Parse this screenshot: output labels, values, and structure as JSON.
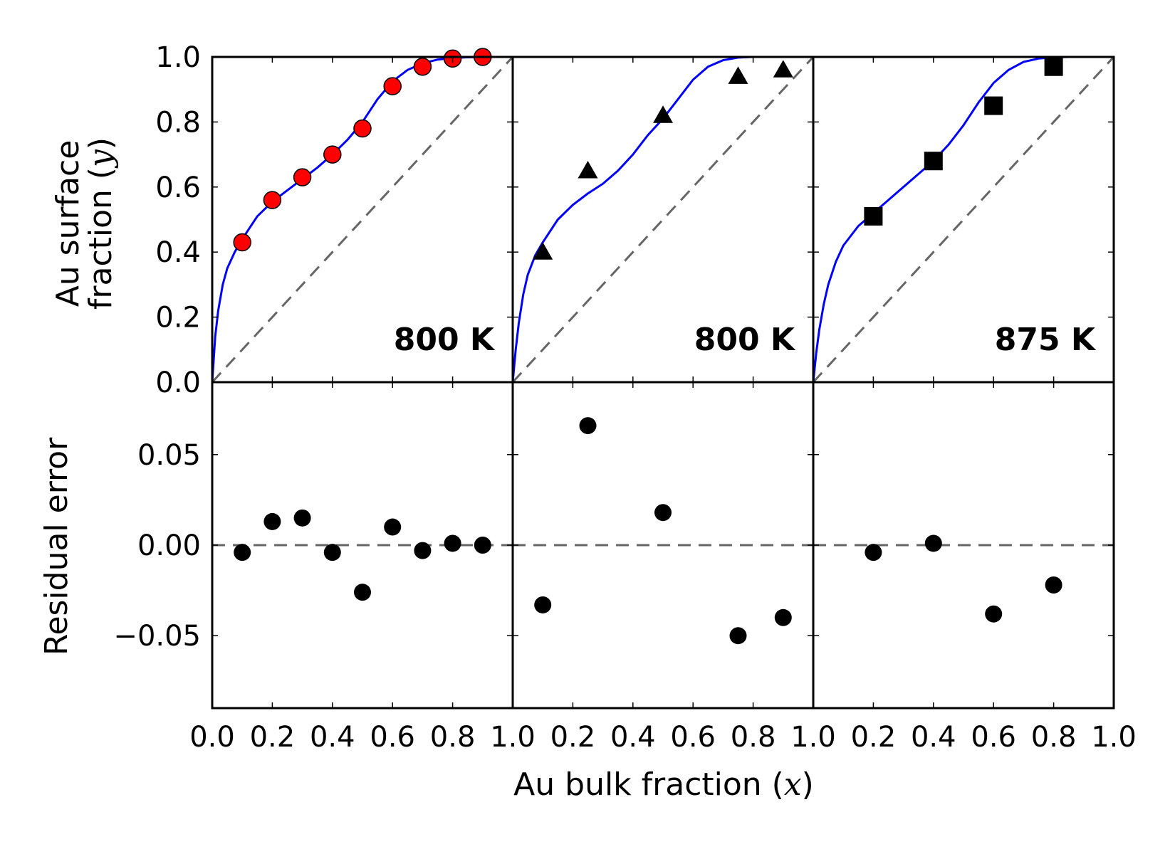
{
  "chart_data": {
    "type": "scatter",
    "xlabel": {
      "text": "Au bulk fraction (",
      "var": "x",
      "close": ")"
    },
    "ylabel_top": {
      "line1": "Au surface",
      "line2": "fraction (",
      "var": "y",
      "close": ")"
    },
    "ylabel_bottom": "Residual error",
    "xlim": [
      0.0,
      1.0
    ],
    "ylim_top": [
      0.0,
      1.0
    ],
    "ylim_bottom": [
      -0.09,
      0.09
    ],
    "x_tick_labels": [
      "0.0",
      "0.2",
      "0.4",
      "0.6",
      "0.8",
      "1.0"
    ],
    "y_tick_labels_top": [
      "0.0",
      "0.2",
      "0.4",
      "0.6",
      "0.8",
      "1.0"
    ],
    "y_tick_labels_bottom": [
      "−0.05",
      "0.00",
      "0.05"
    ],
    "y_ticks_bottom": [
      -0.05,
      0.0,
      0.05
    ],
    "colors": {
      "fit": "#0000ff",
      "reference": "#666666",
      "marker_red": "#ff0000",
      "marker_black": "#000000"
    },
    "panels": [
      {
        "label": "800 K",
        "marker": "circle",
        "marker_color": "#ff0000",
        "x": [
          0.1,
          0.2,
          0.3,
          0.4,
          0.5,
          0.6,
          0.7,
          0.8,
          0.9
        ],
        "y": [
          0.43,
          0.56,
          0.63,
          0.7,
          0.78,
          0.91,
          0.97,
          0.995,
          1.0
        ],
        "residual": [
          -0.004,
          0.013,
          0.015,
          -0.004,
          -0.026,
          0.01,
          -0.003,
          0.001,
          0.0
        ],
        "fit_x": [
          0,
          0.01,
          0.02,
          0.035,
          0.05,
          0.075,
          0.1,
          0.15,
          0.2,
          0.25,
          0.3,
          0.35,
          0.4,
          0.45,
          0.5,
          0.55,
          0.6,
          0.65,
          0.7,
          0.75,
          0.8,
          0.85,
          0.9,
          0.95,
          1.0
        ],
        "fit_y": [
          0,
          0.14,
          0.22,
          0.3,
          0.35,
          0.4,
          0.44,
          0.51,
          0.555,
          0.59,
          0.625,
          0.66,
          0.7,
          0.745,
          0.8,
          0.87,
          0.925,
          0.96,
          0.98,
          0.992,
          0.997,
          0.999,
          1.0,
          1.0,
          1.0
        ]
      },
      {
        "label": "800 K",
        "marker": "triangle",
        "marker_color": "#000000",
        "x": [
          0.1,
          0.25,
          0.5,
          0.75,
          0.9
        ],
        "y": [
          0.4,
          0.65,
          0.82,
          0.94,
          0.96
        ],
        "residual": [
          -0.033,
          0.066,
          0.018,
          -0.05,
          -0.04
        ],
        "fit_x": [
          0,
          0.01,
          0.02,
          0.035,
          0.05,
          0.075,
          0.1,
          0.15,
          0.2,
          0.25,
          0.3,
          0.35,
          0.4,
          0.45,
          0.5,
          0.55,
          0.6,
          0.65,
          0.7,
          0.75,
          0.8,
          0.85,
          0.9,
          0.95,
          1.0
        ],
        "fit_y": [
          0,
          0.1,
          0.18,
          0.27,
          0.33,
          0.39,
          0.43,
          0.5,
          0.545,
          0.58,
          0.61,
          0.65,
          0.7,
          0.76,
          0.81,
          0.87,
          0.93,
          0.97,
          0.99,
          0.998,
          1.0,
          1.0,
          1.0,
          1.0,
          1.0
        ]
      },
      {
        "label": "875 K",
        "marker": "square",
        "marker_color": "#000000",
        "x": [
          0.2,
          0.4,
          0.6,
          0.8
        ],
        "y": [
          0.51,
          0.68,
          0.85,
          0.97
        ],
        "residual": [
          -0.004,
          0.001,
          -0.038,
          -0.022
        ],
        "fit_x": [
          0,
          0.01,
          0.02,
          0.035,
          0.05,
          0.075,
          0.1,
          0.15,
          0.2,
          0.25,
          0.3,
          0.35,
          0.4,
          0.45,
          0.5,
          0.55,
          0.6,
          0.65,
          0.7,
          0.75,
          0.8,
          0.85,
          0.9,
          0.95,
          1.0
        ],
        "fit_y": [
          0,
          0.09,
          0.16,
          0.24,
          0.3,
          0.37,
          0.42,
          0.48,
          0.52,
          0.56,
          0.6,
          0.64,
          0.68,
          0.73,
          0.79,
          0.86,
          0.92,
          0.96,
          0.985,
          0.995,
          0.999,
          1.0,
          1.0,
          1.0,
          1.0
        ]
      }
    ]
  }
}
